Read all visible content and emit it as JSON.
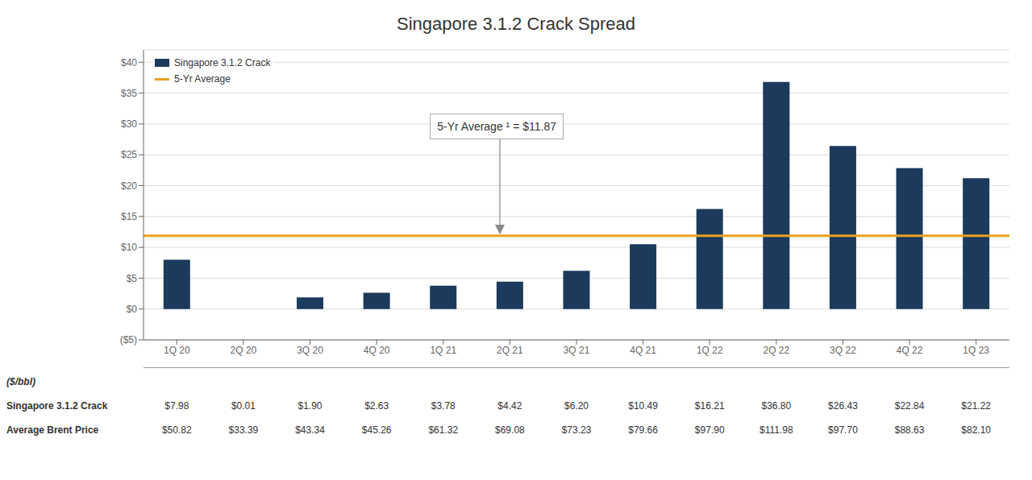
{
  "chart_data": {
    "type": "bar",
    "title": "Singapore 3.1.2 Crack Spread",
    "categories": [
      "1Q 20",
      "2Q 20",
      "3Q 20",
      "4Q 20",
      "1Q 21",
      "2Q 21",
      "3Q 21",
      "4Q 21",
      "1Q 22",
      "2Q 22",
      "3Q 22",
      "4Q 22",
      "1Q 23"
    ],
    "series": [
      {
        "name": "Singapore 3.1.2 Crack",
        "color": "#1B3A5C",
        "values": [
          7.98,
          0.01,
          1.9,
          2.63,
          3.78,
          4.42,
          6.2,
          10.49,
          16.21,
          36.8,
          26.43,
          22.84,
          21.22
        ]
      }
    ],
    "reference_lines": [
      {
        "name": "5-Yr Average",
        "value": 11.87,
        "color": "#E8A020"
      }
    ],
    "annotations": [
      {
        "text": "5-Yr Average ¹ = $11.87"
      }
    ],
    "ylim": [
      -5,
      42
    ],
    "yticks": [
      {
        "value": -5,
        "label": "($5)"
      },
      {
        "value": 0,
        "label": "$0"
      },
      {
        "value": 5,
        "label": "$5"
      },
      {
        "value": 10,
        "label": "$10"
      },
      {
        "value": 15,
        "label": "$15"
      },
      {
        "value": 20,
        "label": "$20"
      },
      {
        "value": 25,
        "label": "$25"
      },
      {
        "value": 30,
        "label": "$30"
      },
      {
        "value": 35,
        "label": "$35"
      },
      {
        "value": 40,
        "label": "$40"
      }
    ],
    "grid": true,
    "legend": "upper left",
    "table": {
      "header": "($/bbl)",
      "rows": [
        {
          "name": "Singapore 3.1.2 Crack",
          "values": [
            7.98,
            0.01,
            1.9,
            2.63,
            3.78,
            4.42,
            6.2,
            10.49,
            16.21,
            36.8,
            26.43,
            22.84,
            21.22
          ],
          "value_labels": [
            "$7.98",
            "$0.01",
            "$1.90",
            "$2.63",
            "$3.78",
            "$4.42",
            "$6.20",
            "$10.49",
            "$16.21",
            "$36.80",
            "$26.43",
            "$22.84",
            "$21.22"
          ]
        },
        {
          "name": "Average Brent Price",
          "values": [
            50.82,
            33.39,
            43.34,
            45.26,
            61.32,
            69.08,
            73.23,
            79.66,
            97.9,
            111.98,
            97.7,
            88.63,
            82.1
          ],
          "value_labels": [
            "$50.82",
            "$33.39",
            "$43.34",
            "$45.26",
            "$61.32",
            "$69.08",
            "$73.23",
            "$79.66",
            "$97.90",
            "$111.98",
            "$97.70",
            "$88.63",
            "$82.10"
          ]
        }
      ]
    }
  }
}
